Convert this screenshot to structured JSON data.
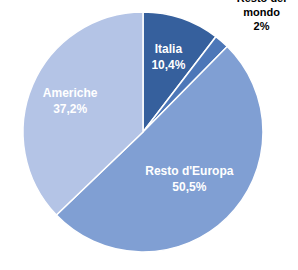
{
  "chart_data": {
    "type": "pie",
    "categories": [
      "Italia",
      "Resto del mondo",
      "Resto d'Europa",
      "Americhe"
    ],
    "values": [
      10.4,
      2,
      50.5,
      37.2
    ],
    "value_labels": [
      "10,4%",
      "2%",
      "50,5%",
      "37,2%"
    ],
    "colors": [
      "#36609d",
      "#4d77b8",
      "#809fd3",
      "#b4c4e6"
    ],
    "data_labels": true
  }
}
